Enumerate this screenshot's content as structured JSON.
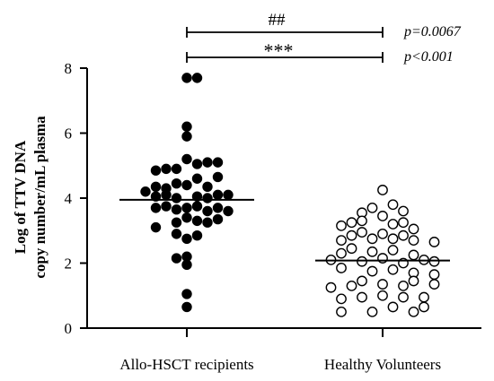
{
  "chart_data": {
    "type": "scatter",
    "ylabel_line1": "Log of TTV DNA",
    "ylabel_line2": "copy number/mL plasma",
    "ylim": [
      0,
      8
    ],
    "yticks": [
      "0",
      "2",
      "4",
      "6",
      "8"
    ],
    "categories": [
      "Allo-HSCT recipients",
      "Healthy Volunteers"
    ],
    "groups": [
      {
        "name": "Allo-HSCT recipients",
        "marker": "filled-circle",
        "color": "#000000",
        "median": 3.95,
        "points": [
          {
            "offset": 0,
            "y": 7.7
          },
          {
            "offset": 1,
            "y": 7.7
          },
          {
            "offset": 0,
            "y": 6.2
          },
          {
            "offset": 0,
            "y": 5.9
          },
          {
            "offset": 0,
            "y": 5.2
          },
          {
            "offset": -3,
            "y": 4.85
          },
          {
            "offset": -2,
            "y": 4.9
          },
          {
            "offset": -1,
            "y": 4.9
          },
          {
            "offset": 1,
            "y": 5.05
          },
          {
            "offset": 2,
            "y": 5.1
          },
          {
            "offset": 3,
            "y": 5.1
          },
          {
            "offset": -4,
            "y": 4.2
          },
          {
            "offset": -3,
            "y": 4.35
          },
          {
            "offset": -2,
            "y": 4.3
          },
          {
            "offset": -1,
            "y": 4.45
          },
          {
            "offset": 0,
            "y": 4.4
          },
          {
            "offset": 1,
            "y": 4.6
          },
          {
            "offset": 2,
            "y": 4.35
          },
          {
            "offset": 3,
            "y": 4.65
          },
          {
            "offset": 4,
            "y": 4.1
          },
          {
            "offset": -3,
            "y": 4.05
          },
          {
            "offset": -2,
            "y": 4.1
          },
          {
            "offset": -1,
            "y": 4.0
          },
          {
            "offset": 1,
            "y": 4.05
          },
          {
            "offset": 2,
            "y": 4.0
          },
          {
            "offset": 3,
            "y": 4.1
          },
          {
            "offset": -3,
            "y": 3.7
          },
          {
            "offset": -2,
            "y": 3.75
          },
          {
            "offset": -1,
            "y": 3.65
          },
          {
            "offset": 0,
            "y": 3.7
          },
          {
            "offset": 1,
            "y": 3.75
          },
          {
            "offset": 2,
            "y": 3.6
          },
          {
            "offset": 3,
            "y": 3.7
          },
          {
            "offset": 4,
            "y": 3.6
          },
          {
            "offset": -3,
            "y": 3.1
          },
          {
            "offset": -1,
            "y": 3.25
          },
          {
            "offset": 0,
            "y": 3.4
          },
          {
            "offset": 1,
            "y": 3.3
          },
          {
            "offset": 2,
            "y": 3.25
          },
          {
            "offset": 3,
            "y": 3.35
          },
          {
            "offset": -1,
            "y": 2.9
          },
          {
            "offset": 0,
            "y": 2.75
          },
          {
            "offset": 1,
            "y": 2.85
          },
          {
            "offset": -1,
            "y": 2.15
          },
          {
            "offset": 0,
            "y": 2.2
          },
          {
            "offset": 0,
            "y": 1.95
          },
          {
            "offset": 0,
            "y": 1.05
          },
          {
            "offset": 0,
            "y": 0.65
          }
        ]
      },
      {
        "name": "Healthy Volunteers",
        "marker": "open-circle",
        "color": "#000000",
        "median": 2.08,
        "points": [
          {
            "offset": 0,
            "y": 4.25
          },
          {
            "offset": -2,
            "y": 3.55
          },
          {
            "offset": -1,
            "y": 3.7
          },
          {
            "offset": 0,
            "y": 3.45
          },
          {
            "offset": 1,
            "y": 3.8
          },
          {
            "offset": 2,
            "y": 3.6
          },
          {
            "offset": -4,
            "y": 3.15
          },
          {
            "offset": -3,
            "y": 3.25
          },
          {
            "offset": -2,
            "y": 3.3
          },
          {
            "offset": 1,
            "y": 3.2
          },
          {
            "offset": 2,
            "y": 3.25
          },
          {
            "offset": 3,
            "y": 3.05
          },
          {
            "offset": -4,
            "y": 2.7
          },
          {
            "offset": -3,
            "y": 2.85
          },
          {
            "offset": -2,
            "y": 2.95
          },
          {
            "offset": -1,
            "y": 2.75
          },
          {
            "offset": 0,
            "y": 2.9
          },
          {
            "offset": 1,
            "y": 2.75
          },
          {
            "offset": 2,
            "y": 2.85
          },
          {
            "offset": 3,
            "y": 2.7
          },
          {
            "offset": 5,
            "y": 2.65
          },
          {
            "offset": -5,
            "y": 2.1
          },
          {
            "offset": -4,
            "y": 2.3
          },
          {
            "offset": -3,
            "y": 2.45
          },
          {
            "offset": -2,
            "y": 2.05
          },
          {
            "offset": -1,
            "y": 2.35
          },
          {
            "offset": 0,
            "y": 2.15
          },
          {
            "offset": 1,
            "y": 2.4
          },
          {
            "offset": 2,
            "y": 2.0
          },
          {
            "offset": 3,
            "y": 2.25
          },
          {
            "offset": 4,
            "y": 2.1
          },
          {
            "offset": 5,
            "y": 2.05
          },
          {
            "offset": -4,
            "y": 1.85
          },
          {
            "offset": -1,
            "y": 1.75
          },
          {
            "offset": 1,
            "y": 1.8
          },
          {
            "offset": 3,
            "y": 1.7
          },
          {
            "offset": 5,
            "y": 1.65
          },
          {
            "offset": -5,
            "y": 1.25
          },
          {
            "offset": -3,
            "y": 1.3
          },
          {
            "offset": -2,
            "y": 1.45
          },
          {
            "offset": 0,
            "y": 1.35
          },
          {
            "offset": 2,
            "y": 1.3
          },
          {
            "offset": 3,
            "y": 1.45
          },
          {
            "offset": 5,
            "y": 1.35
          },
          {
            "offset": -4,
            "y": 0.9
          },
          {
            "offset": -2,
            "y": 0.95
          },
          {
            "offset": 0,
            "y": 1.0
          },
          {
            "offset": 2,
            "y": 0.95
          },
          {
            "offset": 4,
            "y": 0.95
          },
          {
            "offset": -4,
            "y": 0.5
          },
          {
            "offset": -1,
            "y": 0.5
          },
          {
            "offset": 1,
            "y": 0.65
          },
          {
            "offset": 3,
            "y": 0.5
          },
          {
            "offset": 4,
            "y": 0.65
          }
        ]
      }
    ],
    "annotations": [
      {
        "symbol": "##",
        "p_text": "p=0.0067"
      },
      {
        "symbol": "***",
        "p_text": "p<0.001"
      }
    ]
  }
}
